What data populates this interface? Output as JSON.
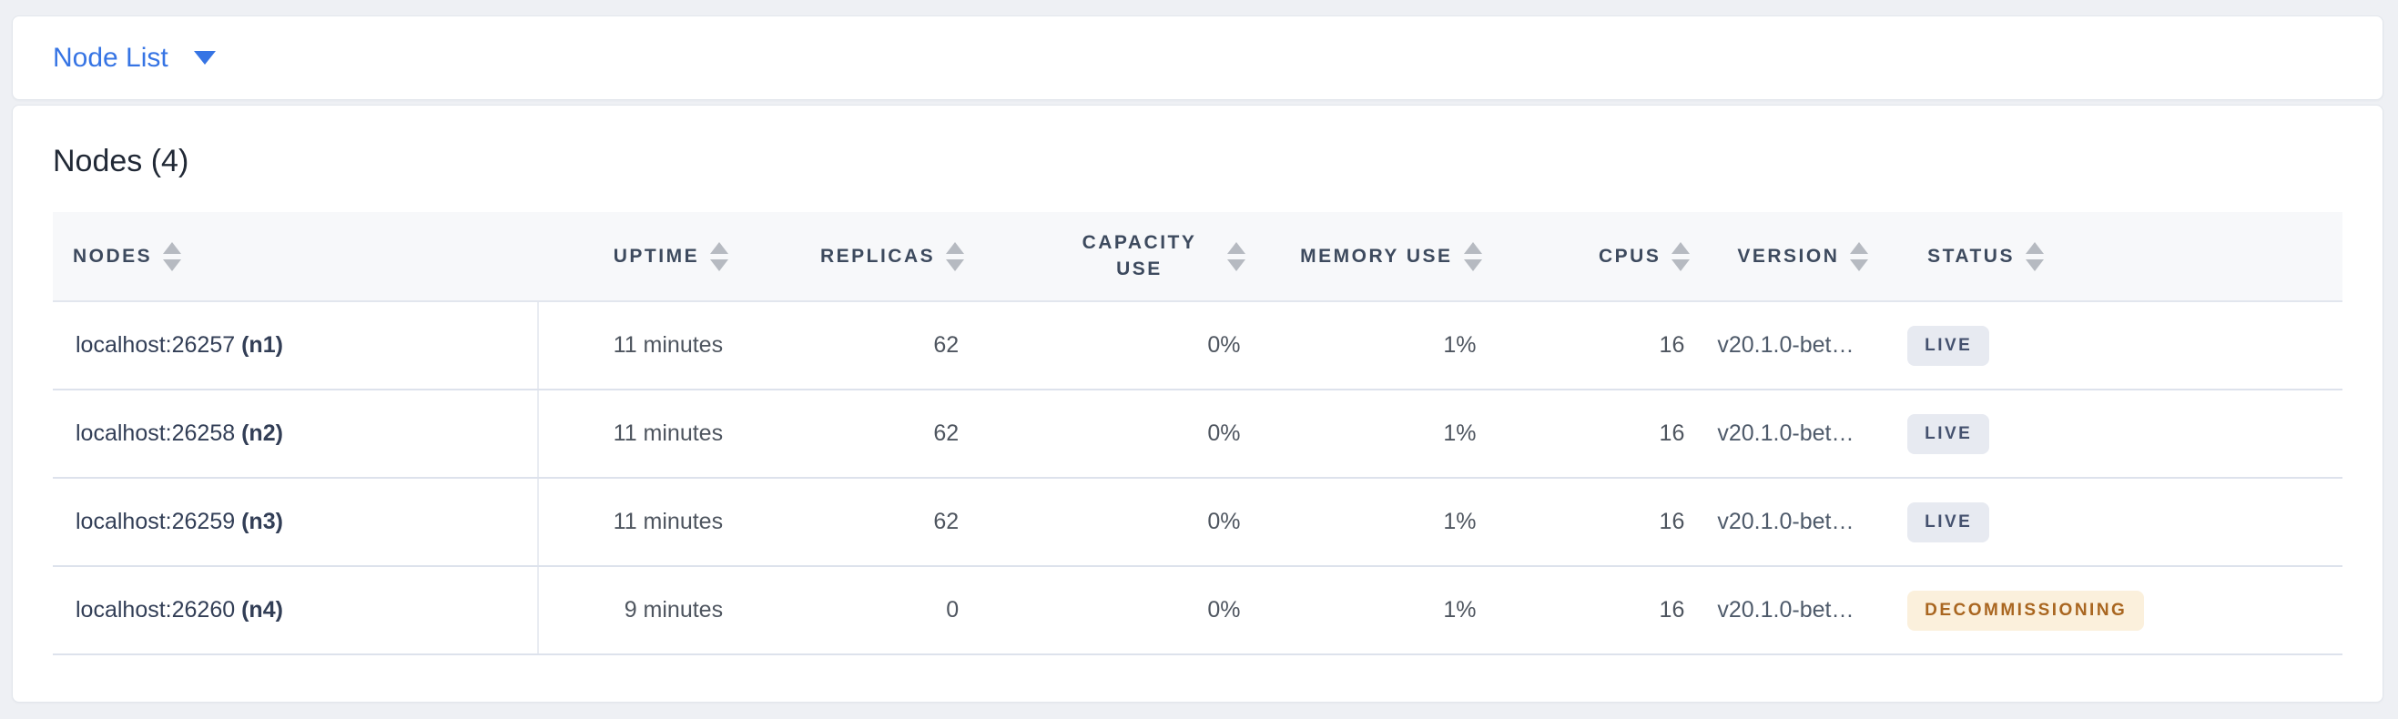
{
  "view_selector": {
    "label": "Node List",
    "caret_icon": "caret-down"
  },
  "panel": {
    "title": "Nodes (4)"
  },
  "table": {
    "columns": [
      {
        "id": "nodes",
        "label": "NODES",
        "sortable": true
      },
      {
        "id": "uptime",
        "label": "UPTIME",
        "sortable": true
      },
      {
        "id": "replicas",
        "label": "REPLICAS",
        "sortable": true
      },
      {
        "id": "capacity_use",
        "label": "CAPACITY USE",
        "sortable": true
      },
      {
        "id": "memory_use",
        "label": "MEMORY USE",
        "sortable": true
      },
      {
        "id": "cpus",
        "label": "CPUS",
        "sortable": true
      },
      {
        "id": "version",
        "label": "VERSION",
        "sortable": true
      },
      {
        "id": "status",
        "label": "STATUS",
        "sortable": true
      }
    ],
    "rows": [
      {
        "node": "localhost:26257",
        "node_id": "(n1)",
        "uptime": "11 minutes",
        "replicas": "62",
        "capacity_use": "0%",
        "memory_use": "1%",
        "cpus": "16",
        "version": "v20.1.0-bet…",
        "status": "LIVE",
        "status_type": "live"
      },
      {
        "node": "localhost:26258",
        "node_id": "(n2)",
        "uptime": "11 minutes",
        "replicas": "62",
        "capacity_use": "0%",
        "memory_use": "1%",
        "cpus": "16",
        "version": "v20.1.0-bet…",
        "status": "LIVE",
        "status_type": "live"
      },
      {
        "node": "localhost:26259",
        "node_id": "(n3)",
        "uptime": "11 minutes",
        "replicas": "62",
        "capacity_use": "0%",
        "memory_use": "1%",
        "cpus": "16",
        "version": "v20.1.0-bet…",
        "status": "LIVE",
        "status_type": "live"
      },
      {
        "node": "localhost:26260",
        "node_id": "(n4)",
        "uptime": "9 minutes",
        "replicas": "0",
        "capacity_use": "0%",
        "memory_use": "1%",
        "cpus": "16",
        "version": "v20.1.0-bet…",
        "status": "DECOMMISSIONING",
        "status_type": "decommissioning"
      }
    ],
    "status_colors": {
      "live": {
        "bg": "#e7eaf1",
        "text": "#44516e"
      },
      "decommissioning": {
        "bg": "#fbf0dc",
        "text": "#a96620"
      }
    }
  },
  "theme": {
    "accent_blue": "#3674e4",
    "page_background": "#eef0f4",
    "header_background": "#f7f8fa"
  }
}
